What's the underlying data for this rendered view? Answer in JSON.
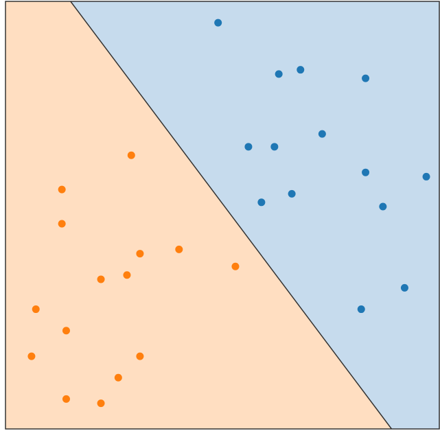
{
  "chart_data": {
    "type": "scatter",
    "title": "",
    "xlabel": "",
    "ylabel": "",
    "grid": false,
    "xlim": [
      0,
      10
    ],
    "ylim": [
      0,
      10
    ],
    "decision_boundary": {
      "points": [
        [
          1.5,
          10.0
        ],
        [
          8.9,
          0.0
        ]
      ]
    },
    "regions": [
      {
        "class": "orange",
        "color": "#ffdec1"
      },
      {
        "class": "blue",
        "color": "#c6dbed"
      }
    ],
    "series": [
      {
        "class": "blue",
        "color": "#1f77b4",
        "points": [
          [
            4.9,
            9.5
          ],
          [
            6.3,
            8.3
          ],
          [
            6.8,
            8.4
          ],
          [
            8.3,
            8.2
          ],
          [
            5.6,
            6.6
          ],
          [
            6.2,
            6.6
          ],
          [
            7.3,
            6.9
          ],
          [
            8.3,
            6.0
          ],
          [
            9.7,
            5.9
          ],
          [
            5.9,
            5.3
          ],
          [
            6.6,
            5.5
          ],
          [
            8.7,
            5.2
          ],
          [
            9.2,
            3.3
          ],
          [
            8.2,
            2.8
          ]
        ]
      },
      {
        "class": "orange",
        "color": "#ff7f0e",
        "points": [
          [
            2.9,
            6.4
          ],
          [
            1.3,
            5.6
          ],
          [
            1.3,
            4.8
          ],
          [
            3.1,
            4.1
          ],
          [
            4.0,
            4.2
          ],
          [
            5.3,
            3.8
          ],
          [
            2.2,
            3.5
          ],
          [
            2.8,
            3.6
          ],
          [
            0.7,
            2.8
          ],
          [
            1.4,
            2.3
          ],
          [
            0.6,
            1.7
          ],
          [
            3.1,
            1.7
          ],
          [
            2.6,
            1.2
          ],
          [
            1.4,
            0.7
          ],
          [
            2.2,
            0.6
          ]
        ]
      }
    ]
  }
}
